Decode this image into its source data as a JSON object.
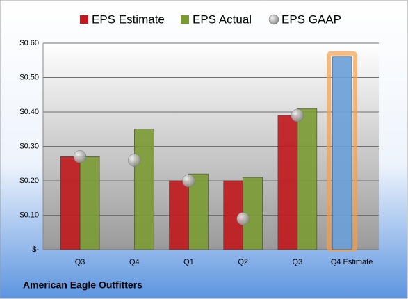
{
  "chart_data": {
    "type": "bar",
    "title": "American Eagle Outfitters",
    "categories": [
      "Q3",
      "Q4",
      "Q1",
      "Q2",
      "Q3",
      "Q4 Estimate"
    ],
    "series": [
      {
        "name": "EPS Estimate",
        "color": "#c0181c",
        "values": [
          0.27,
          null,
          0.2,
          0.2,
          0.39,
          0.56
        ],
        "highlight": {
          "index": 5,
          "color": "#6a9fd8",
          "glow": "#f5a04a"
        }
      },
      {
        "name": "EPS Actual",
        "color": "#7a9a32",
        "values": [
          0.27,
          0.35,
          0.22,
          0.21,
          0.41,
          null
        ]
      },
      {
        "name": "EPS GAAP",
        "color": "#a8a8a8",
        "marker": "circle",
        "values": [
          0.27,
          0.26,
          0.2,
          0.09,
          0.39,
          null
        ]
      }
    ],
    "ylim": [
      0,
      0.6
    ],
    "yticks": [
      {
        "value": 0,
        "label": "$-"
      },
      {
        "value": 0.1,
        "label": "$0.10"
      },
      {
        "value": 0.2,
        "label": "$0.20"
      },
      {
        "value": 0.3,
        "label": "$0.30"
      },
      {
        "value": 0.4,
        "label": "$0.40"
      },
      {
        "value": 0.5,
        "label": "$0.50"
      },
      {
        "value": 0.6,
        "label": "$0.60"
      }
    ],
    "grid": true,
    "legend": "top"
  }
}
